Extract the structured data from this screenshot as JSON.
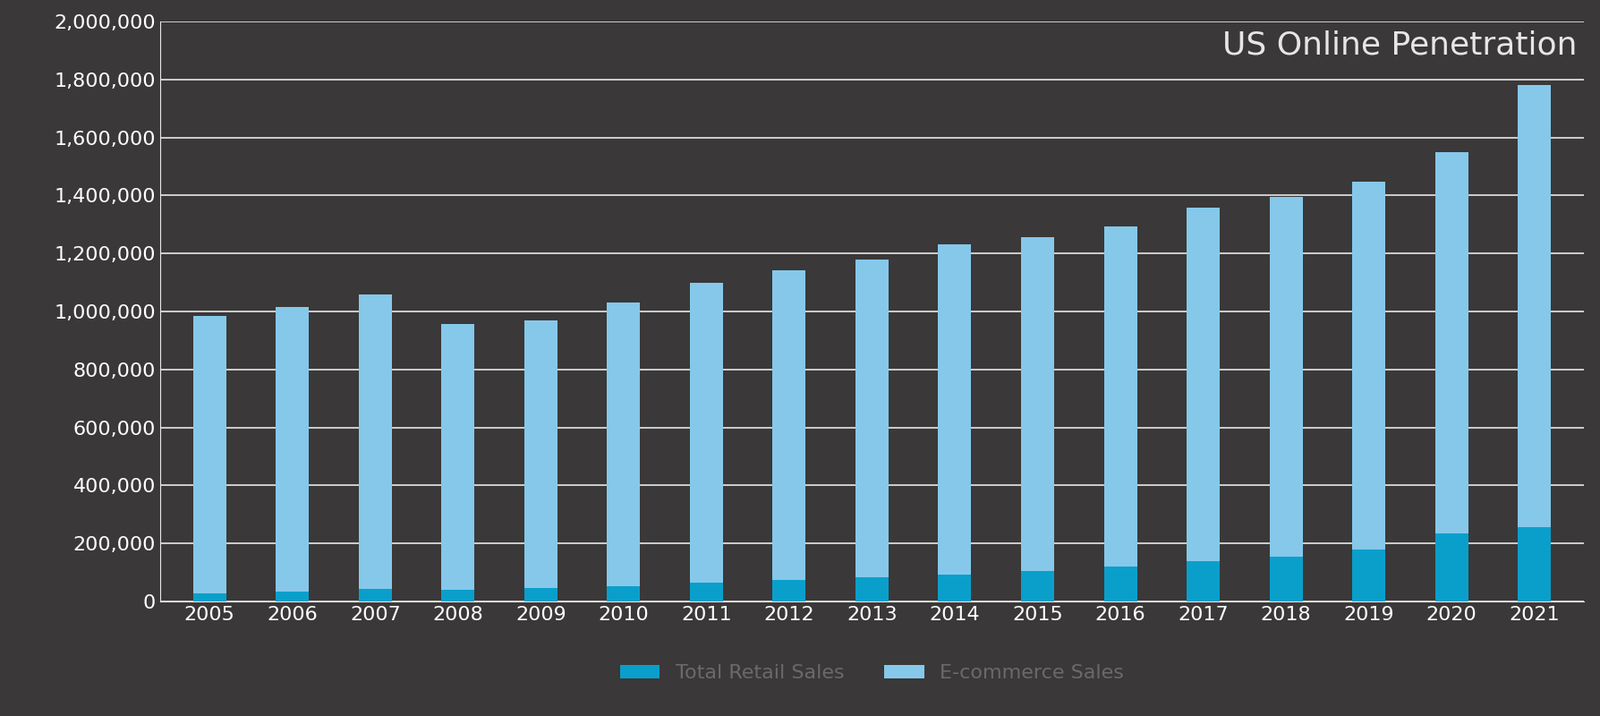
{
  "chart_data": {
    "type": "bar",
    "title": "US Online Penetration",
    "stacked": true,
    "categories": [
      "2005",
      "2006",
      "2007",
      "2008",
      "2009",
      "2010",
      "2011",
      "2012",
      "2013",
      "2014",
      "2015",
      "2016",
      "2017",
      "2018",
      "2019",
      "2020",
      "2021"
    ],
    "series": [
      {
        "name": "Total Retail Sales",
        "color": "#0a9fcb",
        "values": [
          27000,
          34000,
          42000,
          40000,
          45000,
          54000,
          64000,
          74000,
          83000,
          93000,
          106000,
          120000,
          140000,
          155000,
          178000,
          235000,
          257000
        ]
      },
      {
        "name": "E-commerce Sales",
        "color": "#86c8ea",
        "values": [
          958000,
          981000,
          1018000,
          918000,
          923000,
          976000,
          1034000,
          1068000,
          1097000,
          1139000,
          1149000,
          1173000,
          1217000,
          1240000,
          1270000,
          1313000,
          1525000
        ]
      }
    ],
    "ylim": [
      0,
      2000000
    ],
    "yticks": [
      0,
      {
        "value": 200000,
        "label": "200,000"
      },
      {
        "value": 400000,
        "label": "400,000"
      },
      {
        "value": 600000,
        "label": "600,000"
      },
      {
        "value": 800000,
        "label": "800,000"
      },
      {
        "value": 1000000,
        "label": "1,000,000"
      },
      {
        "value": 1200000,
        "label": "1,200,000"
      },
      {
        "value": 1400000,
        "label": "1,400,000"
      },
      {
        "value": 1600000,
        "label": "1,600,000"
      },
      {
        "value": 1800000,
        "label": "1,800,000"
      },
      {
        "value": 2000000,
        "label": "2,000,000"
      }
    ],
    "grid": true,
    "legend": "lower center"
  }
}
